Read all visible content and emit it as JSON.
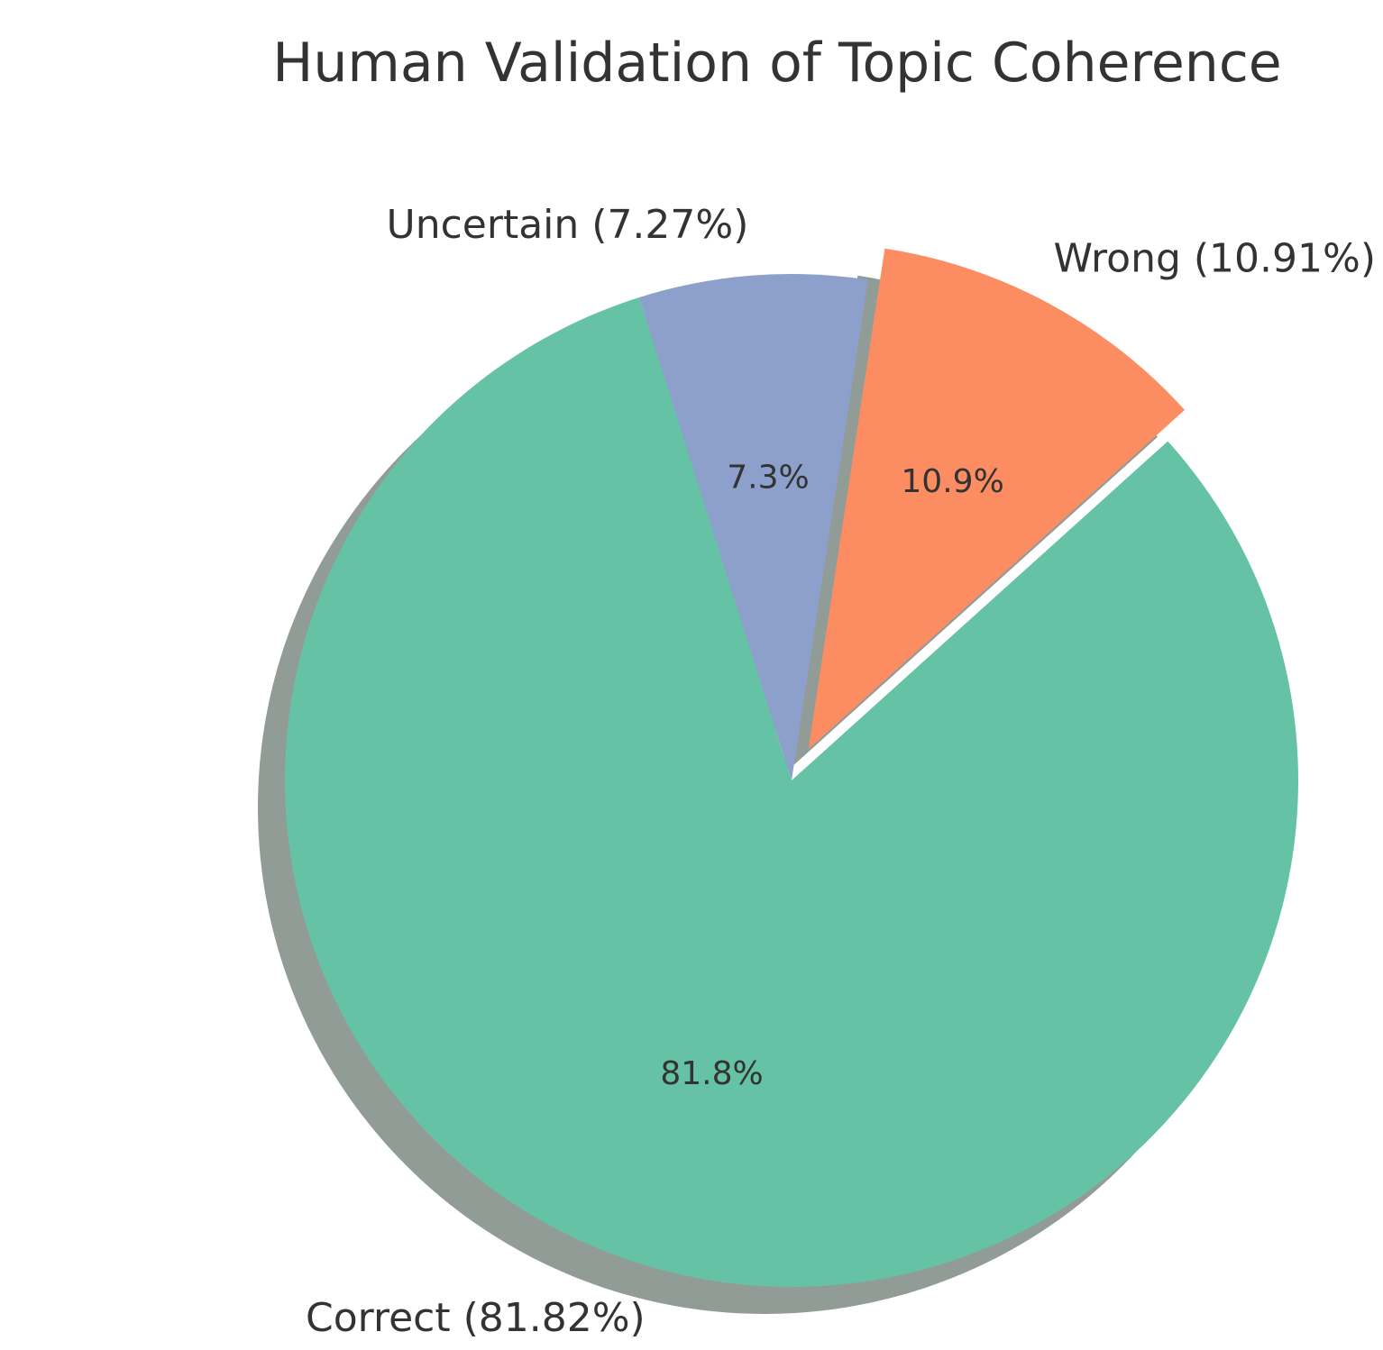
{
  "chart_data": {
    "type": "pie",
    "title": "Human Validation of Topic Coherence",
    "start_angle_deg": 107.5,
    "direction": "counterclockwise",
    "shadow": true,
    "slices": [
      {
        "name": "Correct",
        "value": 81.82,
        "label": "Correct (81.82%)",
        "pct_label": "81.8%",
        "color": "#66c2a5",
        "explode": 0
      },
      {
        "name": "Wrong",
        "value": 10.91,
        "label": "Wrong (10.91%)",
        "pct_label": "10.9%",
        "color": "#fc8d62",
        "explode": 0.07
      },
      {
        "name": "Uncertain",
        "value": 7.27,
        "label": "Uncertain (7.27%)",
        "pct_label": "7.3%",
        "color": "#8da0cb",
        "explode": 0
      }
    ]
  }
}
